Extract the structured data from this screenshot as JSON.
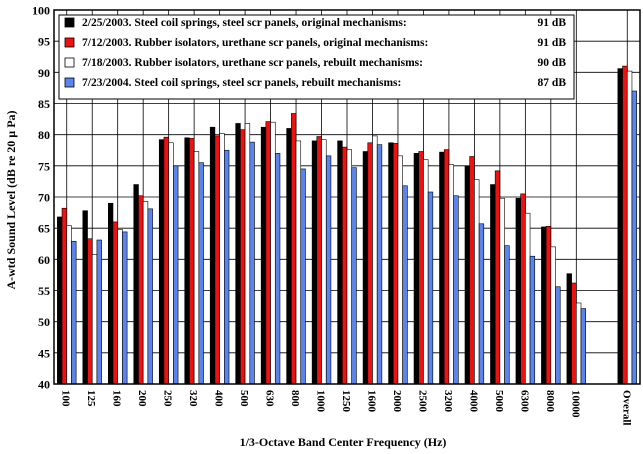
{
  "chart_data": {
    "type": "bar",
    "xlabel": "1/3-Octave Band Center Frequency (Hz)",
    "ylabel": "A-wtd Sound Level (dB re 20 µ Pa)",
    "ylim": [
      40,
      100
    ],
    "yticks": [
      40,
      45,
      50,
      55,
      60,
      65,
      70,
      75,
      80,
      85,
      90,
      95,
      100
    ],
    "grid": true,
    "legend_position": "top-left",
    "categories": [
      "100",
      "125",
      "160",
      "200",
      "250",
      "320",
      "400",
      "500",
      "630",
      "800",
      "1000",
      "1250",
      "1600",
      "2000",
      "2500",
      "3200",
      "4000",
      "5000",
      "6300",
      "8000",
      "10000",
      "",
      "Overall"
    ],
    "series": [
      {
        "name": "2/25/2003. Steel coil springs, steel scr panels, original mechanisms:",
        "overall_label": "91 dB",
        "color": "#000000",
        "values": [
          66.8,
          67.8,
          69.0,
          72.0,
          79.2,
          79.5,
          81.2,
          81.8,
          81.2,
          81.0,
          79.0,
          79.0,
          77.3,
          78.7,
          77.0,
          77.2,
          75.0,
          72.0,
          69.8,
          65.2,
          57.7,
          null,
          90.6
        ]
      },
      {
        "name": "7/12/2003. Rubber isolators, urethane scr panels, original mechanisms:",
        "overall_label": "91 dB",
        "color": "#ee1111",
        "values": [
          68.2,
          63.3,
          66.0,
          70.2,
          79.6,
          79.4,
          79.8,
          80.8,
          82.1,
          83.4,
          79.7,
          78.0,
          78.7,
          78.6,
          77.3,
          77.6,
          76.5,
          74.2,
          70.5,
          65.3,
          56.2,
          null,
          91.0
        ]
      },
      {
        "name": "7/18/2003. Rubber isolators, urethane scr  panels, rebuilt mechanisms:",
        "overall_label": "90 dB",
        "color": "#ffffff",
        "values": [
          65.4,
          60.8,
          64.8,
          69.3,
          78.7,
          77.3,
          80.2,
          81.8,
          82.0,
          79.0,
          79.2,
          77.6,
          79.8,
          76.6,
          76.0,
          75.2,
          72.8,
          69.8,
          67.4,
          62.0,
          53.0,
          null,
          90.2
        ]
      },
      {
        "name": "7/23/2004. Steel coil springs, steel scr panels, rebuilt mechanisms:",
        "overall_label": "87 dB",
        "color": "#5b84ec",
        "values": [
          62.9,
          63.1,
          64.4,
          68.1,
          75.0,
          75.5,
          77.5,
          78.8,
          77.0,
          74.5,
          76.6,
          74.7,
          78.4,
          71.8,
          70.8,
          70.2,
          65.7,
          62.2,
          60.5,
          55.6,
          52.1,
          null,
          87.0
        ]
      }
    ]
  }
}
